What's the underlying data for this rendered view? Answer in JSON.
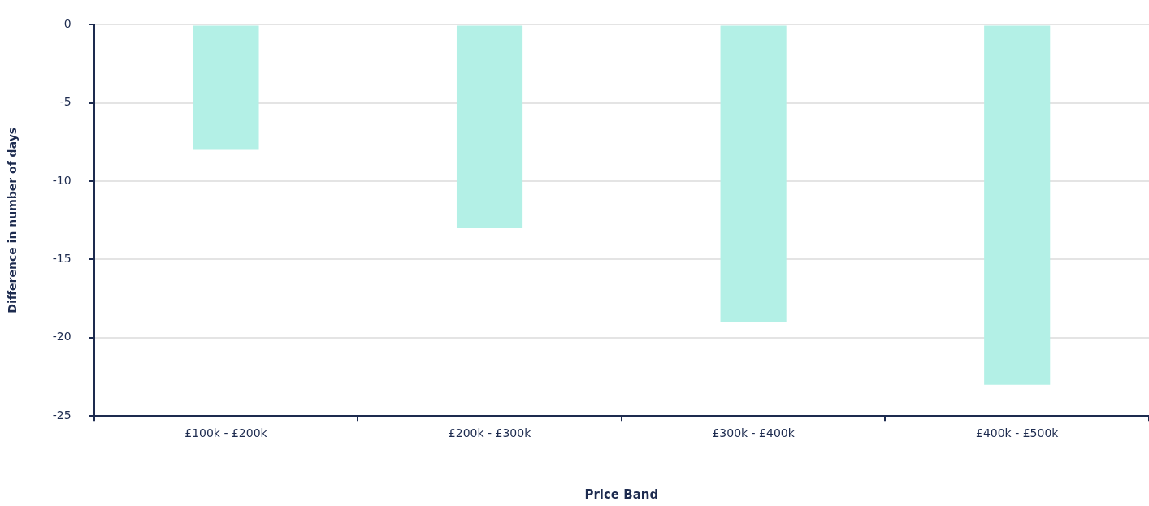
{
  "chart_data": {
    "type": "bar",
    "xlabel": "Price Band",
    "ylabel": "Difference in number of days",
    "categories": [
      "£100k - £200k",
      "£200k - £300k",
      "£300k - £400k",
      "£400k - £500k"
    ],
    "values": [
      -8,
      -13,
      -19,
      -23
    ],
    "color": "#b3f0e6",
    "ylim": [
      -25,
      0
    ],
    "yticks": [
      -25,
      -20,
      -15,
      -10,
      -5,
      0
    ],
    "grid": "y",
    "legend": false
  }
}
